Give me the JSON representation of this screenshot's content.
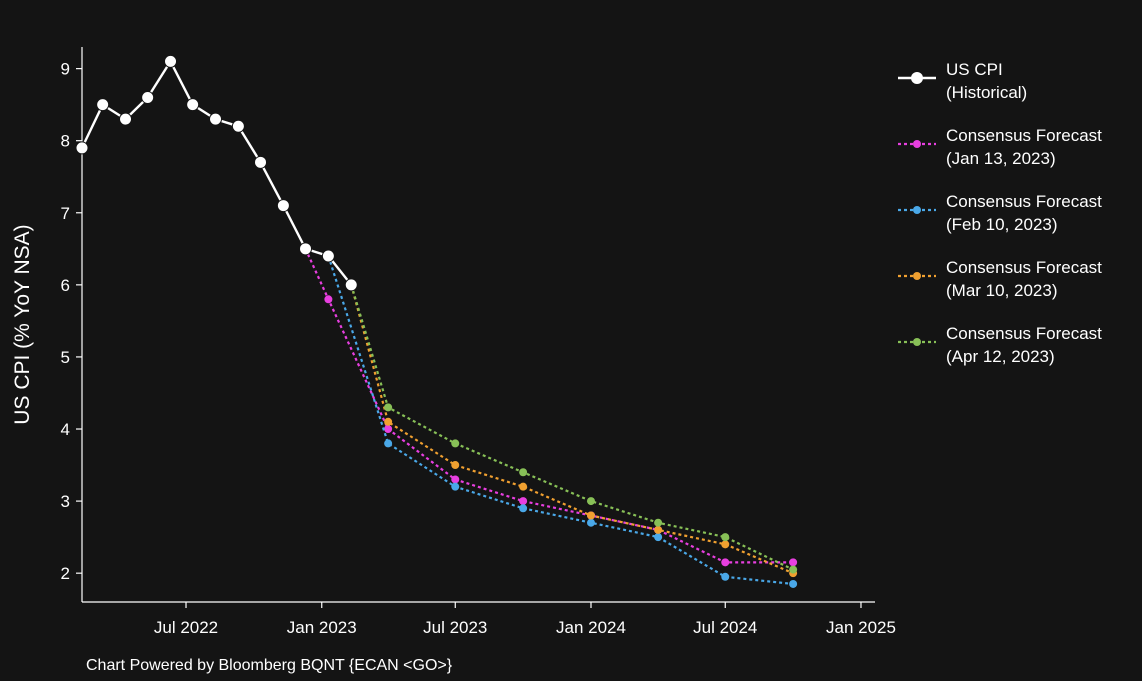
{
  "chart_data": {
    "type": "line",
    "title": "",
    "ylabel": "US CPI (% YoY NSA)",
    "xlabel": "",
    "ylim": [
      1.6,
      9.3
    ],
    "xlim": [
      "2022-02-10",
      "2025-01-20"
    ],
    "yticks": [
      2,
      3,
      4,
      5,
      6,
      7,
      8,
      9
    ],
    "xticks": [
      {
        "date": "2022-07-01",
        "label": "Jul 2022"
      },
      {
        "date": "2023-01-01",
        "label": "Jan 2023"
      },
      {
        "date": "2023-07-01",
        "label": "Jul 2023"
      },
      {
        "date": "2024-01-01",
        "label": "Jan 2024"
      },
      {
        "date": "2024-07-01",
        "label": "Jul 2024"
      },
      {
        "date": "2025-01-01",
        "label": "Jan 2025"
      }
    ],
    "grid": false,
    "legend_position": "right",
    "series": [
      {
        "name": "US CPI (Historical)",
        "legend_lines": [
          "US CPI",
          "(Historical)"
        ],
        "color": "#ffffff",
        "style": "solid",
        "points": [
          {
            "x": "2022-02-10",
            "y": 7.9
          },
          {
            "x": "2022-03-10",
            "y": 8.5
          },
          {
            "x": "2022-04-10",
            "y": 8.3
          },
          {
            "x": "2022-05-10",
            "y": 8.6
          },
          {
            "x": "2022-06-10",
            "y": 9.1
          },
          {
            "x": "2022-07-10",
            "y": 8.5
          },
          {
            "x": "2022-08-10",
            "y": 8.3
          },
          {
            "x": "2022-09-10",
            "y": 8.2
          },
          {
            "x": "2022-10-10",
            "y": 7.7
          },
          {
            "x": "2022-11-10",
            "y": 7.1
          },
          {
            "x": "2022-12-10",
            "y": 6.5
          },
          {
            "x": "2023-01-10",
            "y": 6.4
          },
          {
            "x": "2023-02-10",
            "y": 6.0
          }
        ]
      },
      {
        "name": "Consensus Forecast (Jan 13, 2023)",
        "legend_lines": [
          "Consensus Forecast",
          "(Jan 13, 2023)"
        ],
        "color": "#e83fe0",
        "style": "dotted",
        "points": [
          {
            "x": "2022-12-10",
            "y": 6.5
          },
          {
            "x": "2023-01-10",
            "y": 5.8
          },
          {
            "x": "2023-04-01",
            "y": 4.0
          },
          {
            "x": "2023-07-01",
            "y": 3.3
          },
          {
            "x": "2023-10-01",
            "y": 3.0
          },
          {
            "x": "2024-01-01",
            "y": 2.8
          },
          {
            "x": "2024-04-01",
            "y": 2.6
          },
          {
            "x": "2024-07-01",
            "y": 2.15
          },
          {
            "x": "2024-10-01",
            "y": 2.15
          }
        ]
      },
      {
        "name": "Consensus Forecast (Feb 10, 2023)",
        "legend_lines": [
          "Consensus Forecast",
          "(Feb 10, 2023)"
        ],
        "color": "#4aa8e8",
        "style": "dotted",
        "points": [
          {
            "x": "2023-01-10",
            "y": 6.4
          },
          {
            "x": "2023-04-01",
            "y": 3.8
          },
          {
            "x": "2023-07-01",
            "y": 3.2
          },
          {
            "x": "2023-10-01",
            "y": 2.9
          },
          {
            "x": "2024-01-01",
            "y": 2.7
          },
          {
            "x": "2024-04-01",
            "y": 2.5
          },
          {
            "x": "2024-07-01",
            "y": 1.95
          },
          {
            "x": "2024-10-01",
            "y": 1.85
          }
        ]
      },
      {
        "name": "Consensus Forecast (Mar 10, 2023)",
        "legend_lines": [
          "Consensus Forecast",
          "(Mar 10, 2023)"
        ],
        "color": "#f0a030",
        "style": "dotted",
        "points": [
          {
            "x": "2023-02-10",
            "y": 6.0
          },
          {
            "x": "2023-04-01",
            "y": 4.1
          },
          {
            "x": "2023-07-01",
            "y": 3.5
          },
          {
            "x": "2023-10-01",
            "y": 3.2
          },
          {
            "x": "2024-01-01",
            "y": 2.8
          },
          {
            "x": "2024-04-01",
            "y": 2.6
          },
          {
            "x": "2024-07-01",
            "y": 2.4
          },
          {
            "x": "2024-10-01",
            "y": 2.0
          }
        ]
      },
      {
        "name": "Consensus Forecast (Apr 12, 2023)",
        "legend_lines": [
          "Consensus Forecast",
          "(Apr 12, 2023)"
        ],
        "color": "#88c057",
        "style": "dotted",
        "points": [
          {
            "x": "2023-02-10",
            "y": 6.0
          },
          {
            "x": "2023-04-01",
            "y": 4.3
          },
          {
            "x": "2023-07-01",
            "y": 3.8
          },
          {
            "x": "2023-10-01",
            "y": 3.4
          },
          {
            "x": "2024-01-01",
            "y": 3.0
          },
          {
            "x": "2024-04-01",
            "y": 2.7
          },
          {
            "x": "2024-07-01",
            "y": 2.5
          },
          {
            "x": "2024-10-01",
            "y": 2.05
          }
        ]
      }
    ]
  },
  "footer": "Chart Powered by Bloomberg BQNT {ECAN <GO>}"
}
